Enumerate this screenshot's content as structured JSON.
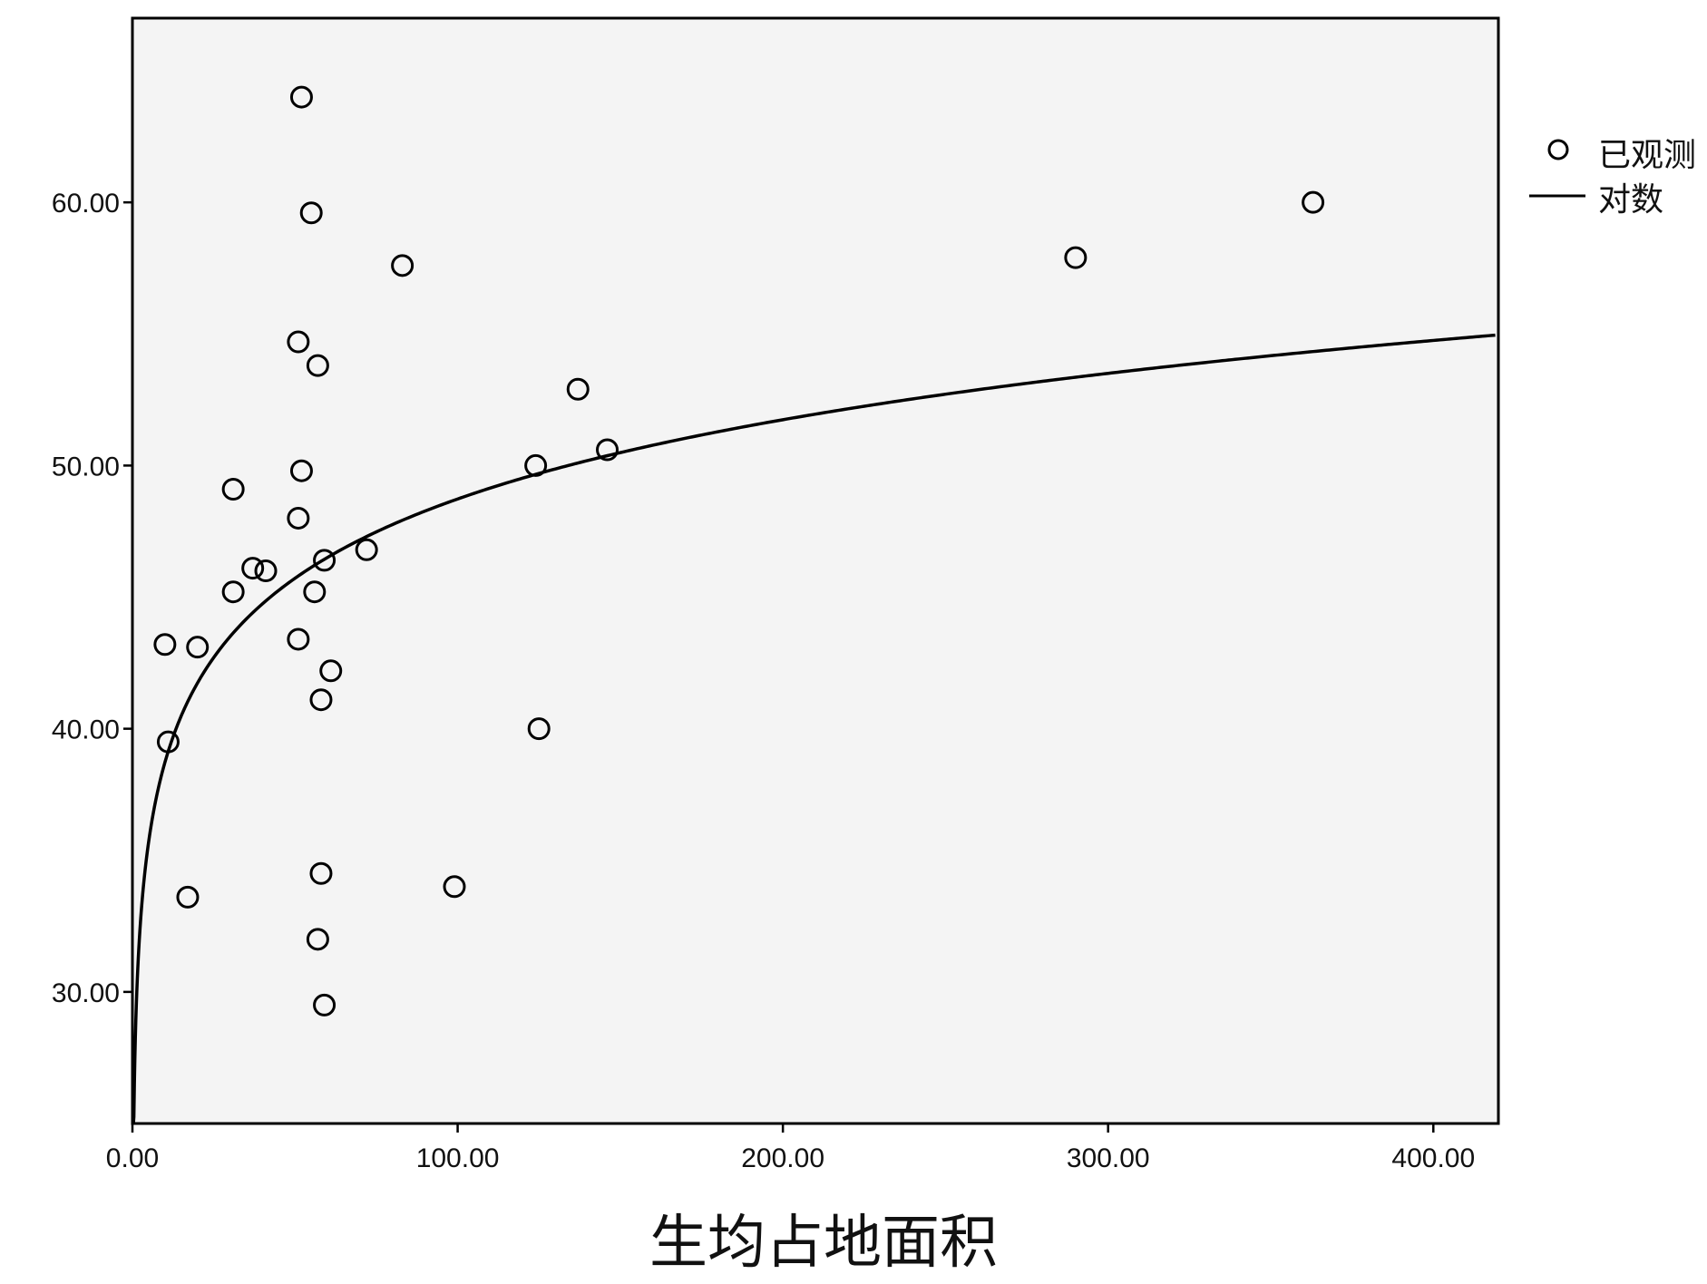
{
  "chart_data": {
    "type": "scatter",
    "title": "",
    "xlabel": "生均占地面积",
    "ylabel": "",
    "xlim": [
      0,
      420
    ],
    "ylim": [
      25,
      67
    ],
    "x_ticks": [
      0,
      100,
      200,
      300,
      400
    ],
    "x_tick_labels": [
      "0.00",
      "100.00",
      "200.00",
      "300.00",
      "400.00"
    ],
    "y_ticks": [
      30,
      40,
      50,
      60
    ],
    "y_tick_labels": [
      "30.00",
      "40.00",
      "50.00",
      "60.00"
    ],
    "grid": false,
    "legend_position": "right-top",
    "legend": [
      {
        "label": "已观测",
        "marker": "circle"
      },
      {
        "label": "对数",
        "marker": "line"
      }
    ],
    "series": [
      {
        "name": "已观测",
        "type": "scatter",
        "color": "#000000",
        "points": [
          {
            "x": 52,
            "y": 64.0
          },
          {
            "x": 55,
            "y": 59.6
          },
          {
            "x": 83,
            "y": 57.6
          },
          {
            "x": 51,
            "y": 54.7
          },
          {
            "x": 57,
            "y": 53.8
          },
          {
            "x": 137,
            "y": 52.9
          },
          {
            "x": 146,
            "y": 50.6
          },
          {
            "x": 124,
            "y": 50.0
          },
          {
            "x": 52,
            "y": 49.8
          },
          {
            "x": 31,
            "y": 49.1
          },
          {
            "x": 51,
            "y": 48.0
          },
          {
            "x": 72,
            "y": 46.8
          },
          {
            "x": 59,
            "y": 46.4
          },
          {
            "x": 37,
            "y": 46.1
          },
          {
            "x": 41,
            "y": 46.0
          },
          {
            "x": 31,
            "y": 45.2
          },
          {
            "x": 56,
            "y": 45.2
          },
          {
            "x": 51,
            "y": 43.4
          },
          {
            "x": 10,
            "y": 43.2
          },
          {
            "x": 20,
            "y": 43.1
          },
          {
            "x": 61,
            "y": 42.2
          },
          {
            "x": 58,
            "y": 41.1
          },
          {
            "x": 125,
            "y": 40.0
          },
          {
            "x": 11,
            "y": 39.5
          },
          {
            "x": 58,
            "y": 34.5
          },
          {
            "x": 99,
            "y": 34.0
          },
          {
            "x": 17,
            "y": 33.6
          },
          {
            "x": 57,
            "y": 32.0
          },
          {
            "x": 59,
            "y": 29.5
          },
          {
            "x": 290,
            "y": 57.9
          },
          {
            "x": 363,
            "y": 60.0
          }
        ]
      },
      {
        "name": "对数",
        "type": "line",
        "color": "#000000",
        "model": "y = a + b·ln(x)",
        "a": 28.72,
        "b": 4.345
      }
    ]
  }
}
